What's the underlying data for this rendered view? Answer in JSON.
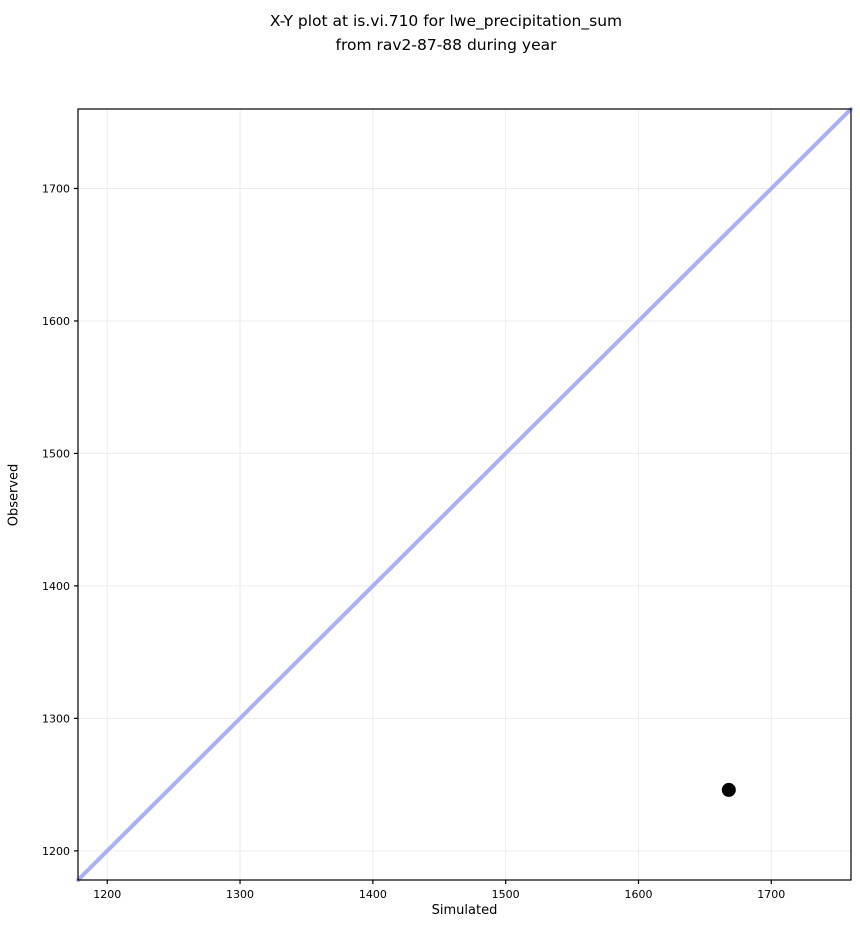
{
  "chart_data": {
    "type": "scatter",
    "title": "X-Y plot at is.vi.710 for lwe_precipitation_sum\nfrom rav2-87-88 during year",
    "title_lines": [
      "X-Y plot at is.vi.710 for lwe_precipitation_sum",
      "from rav2-87-88 during year"
    ],
    "xlabel": "Simulated",
    "ylabel": "Observed",
    "xlim": [
      1178,
      1760
    ],
    "ylim": [
      1178,
      1760
    ],
    "x_ticks": [
      1200,
      1300,
      1400,
      1500,
      1600,
      1700
    ],
    "y_ticks": [
      1200,
      1300,
      1400,
      1500,
      1600,
      1700
    ],
    "grid": true,
    "grid_color": "#ececec",
    "frame_color": "#000000",
    "tick_label_color": "#000000",
    "points": [
      {
        "x": 1668,
        "y": 1246
      }
    ],
    "point_color": "#000000",
    "point_radius": 7,
    "identity_line": {
      "x1": 1178,
      "y1": 1178,
      "x2": 1760,
      "y2": 1760,
      "color": "#aab0f5",
      "width": 4
    },
    "legend": false
  }
}
